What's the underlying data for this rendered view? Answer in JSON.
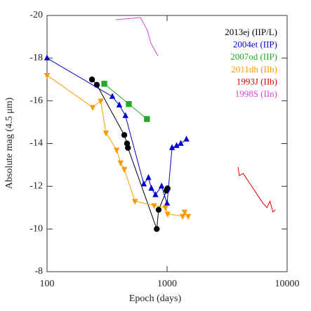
{
  "chart_data": {
    "type": "line",
    "xlabel": "Epoch (days)",
    "ylabel": "Absolute mag (4.5 μm)",
    "xscale": "log",
    "xlim": [
      100,
      10000
    ],
    "xticks": [
      100,
      1000,
      10000
    ],
    "ylim": [
      -8,
      -20
    ],
    "yticks": [
      -8,
      -10,
      -12,
      -14,
      -16,
      -18,
      -20
    ],
    "legend": "upper right",
    "series": [
      {
        "name": "2013ej (IIP/L)",
        "color": "#000000",
        "marker": "circle",
        "x": [
          237,
          260,
          440,
          464,
          472,
          820,
          850,
          990,
          1010
        ],
        "values": [
          -17.0,
          -16.75,
          -14.4,
          -14.0,
          -13.8,
          -10.0,
          -10.9,
          -11.8,
          -11.9
        ]
      },
      {
        "name": "2004et (IIP)",
        "color": "#0000cc",
        "marker": "triangle-up",
        "x": [
          100,
          350,
          400,
          450,
          640,
          700,
          740,
          800,
          900,
          1000,
          1100,
          1200,
          1300,
          1450
        ],
        "values": [
          -18.0,
          -16.2,
          -15.8,
          -15.3,
          -12.1,
          -12.4,
          -11.9,
          -11.6,
          -12.0,
          -11.2,
          -13.8,
          -13.9,
          -14.0,
          -14.2
        ]
      },
      {
        "name": "2007od (IIP)",
        "color": "#22aa22",
        "marker": "square",
        "x": [
          300,
          480,
          680
        ],
        "values": [
          -16.8,
          -15.85,
          -15.15
        ]
      },
      {
        "name": "2011dh (IIb)",
        "color": "#ff9900",
        "marker": "triangle-down",
        "x": [
          100,
          240,
          280,
          310,
          380,
          410,
          440,
          540,
          780,
          970,
          1010,
          1350,
          1400,
          1500
        ],
        "values": [
          -17.2,
          -15.7,
          -16.0,
          -14.5,
          -13.7,
          -13.1,
          -12.8,
          -11.3,
          -11.1,
          -11.0,
          -10.7,
          -10.6,
          -10.8,
          -10.6
        ]
      },
      {
        "name": "1993J (IIb)",
        "color": "#dd0000",
        "marker": "none",
        "x": [
          3900,
          4000,
          4300,
          4800,
          5500,
          6300,
          6800,
          7200,
          7600,
          8000
        ],
        "values": [
          -12.9,
          -12.5,
          -12.6,
          -12.2,
          -11.7,
          -11.2,
          -11.0,
          -11.3,
          -10.8,
          -10.9
        ]
      },
      {
        "name": "1998S (IIn)",
        "color": "#dd44dd",
        "marker": "none",
        "x": [
          374,
          600,
          685,
          733,
          840
        ],
        "values": [
          -19.8,
          -19.9,
          -19.3,
          -18.7,
          -18.1
        ]
      }
    ]
  }
}
